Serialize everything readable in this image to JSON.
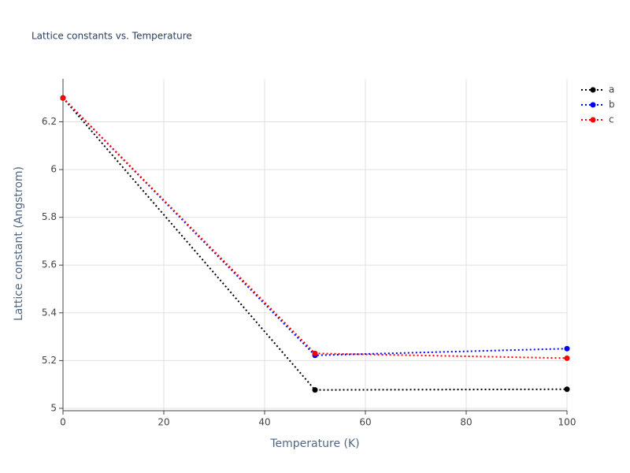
{
  "chart_data": {
    "type": "line",
    "title": "Lattice constants vs. Temperature",
    "x_label": "Temperature (K)",
    "y_label": "Lattice constant (Angstrom)",
    "x": [
      0,
      50,
      100
    ],
    "series": [
      {
        "name": "a",
        "color": "#000000",
        "values": [
          6.3,
          5.077,
          5.08
        ]
      },
      {
        "name": "b",
        "color": "#0000ff",
        "values": [
          6.3,
          5.222,
          5.25
        ]
      },
      {
        "name": "c",
        "color": "#ff0000",
        "values": [
          6.3,
          5.23,
          5.21
        ]
      }
    ],
    "xlim": [
      0,
      100
    ],
    "xticks": [
      0,
      20,
      40,
      60,
      80,
      100
    ],
    "ylim": [
      4.99,
      6.38
    ],
    "yticks": [
      5,
      5.2,
      5.4,
      5.6,
      5.8,
      6,
      6.2
    ],
    "grid": true,
    "legend": "top-right"
  }
}
